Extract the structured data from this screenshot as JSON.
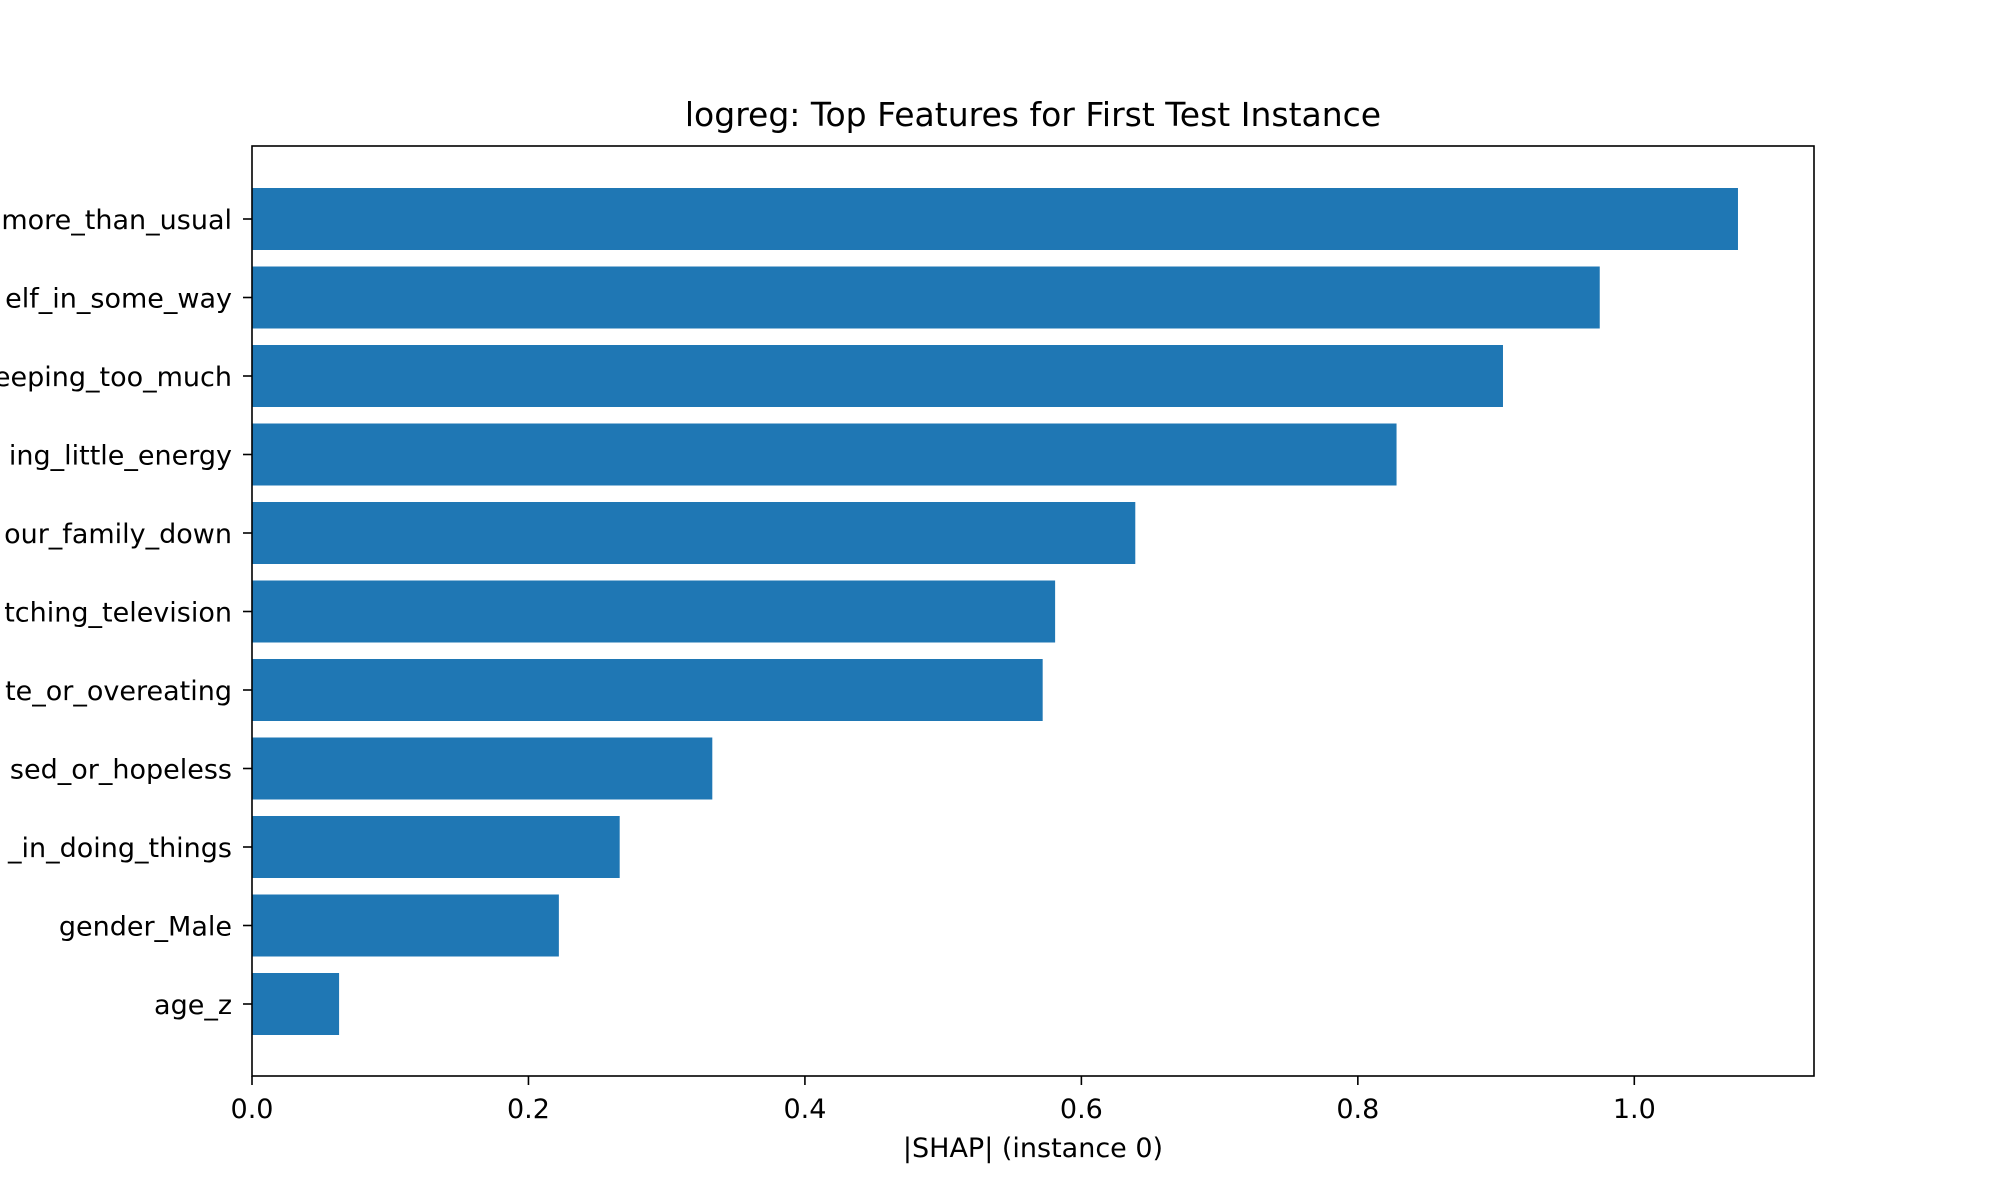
{
  "chart_data": {
    "type": "bar",
    "orientation": "horizontal",
    "title": "logreg: Top Features for First Test Instance",
    "xlabel": "|SHAP| (instance 0)",
    "ylabel": "",
    "categories": [
      "more_than_usual",
      "elf_in_some_way",
      "eeping_too_much",
      "ing_little_energy",
      "our_family_down",
      "tching_television",
      "te_or_overeating",
      "sed_or_hopeless",
      "_in_doing_things",
      "gender_Male",
      "age_z"
    ],
    "values": [
      1.075,
      0.975,
      0.905,
      0.828,
      0.639,
      0.581,
      0.572,
      0.333,
      0.266,
      0.222,
      0.063
    ],
    "xlim": [
      0,
      1.13
    ],
    "xticks": [
      "0.0",
      "0.2",
      "0.4",
      "0.6",
      "0.8",
      "1.0"
    ],
    "xtick_values": [
      0,
      0.2,
      0.4,
      0.6,
      0.8,
      1.0
    ],
    "bar_color": "#1f77b4",
    "grid": false,
    "legend": "none"
  }
}
